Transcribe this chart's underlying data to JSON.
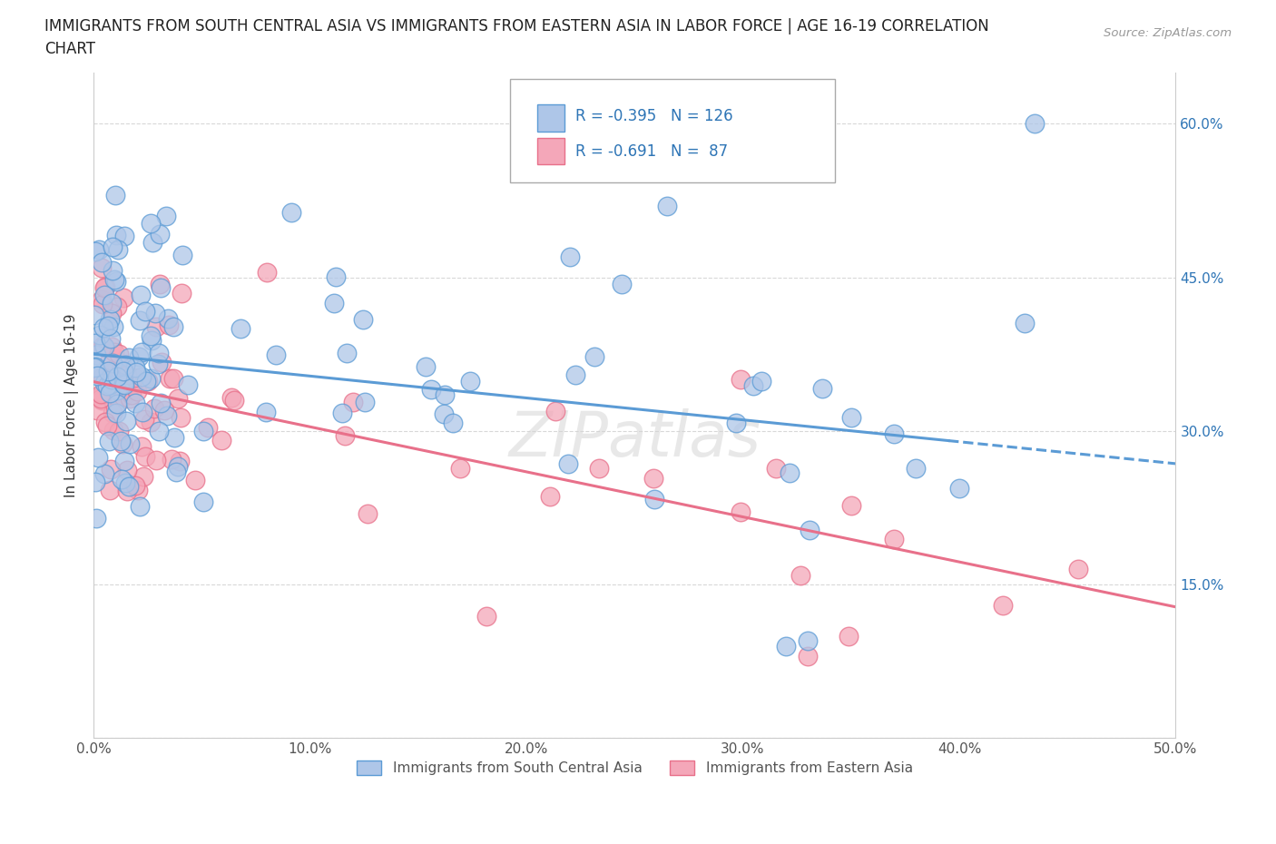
{
  "title_line1": "IMMIGRANTS FROM SOUTH CENTRAL ASIA VS IMMIGRANTS FROM EASTERN ASIA IN LABOR FORCE | AGE 16-19 CORRELATION",
  "title_line2": "CHART",
  "source": "Source: ZipAtlas.com",
  "ylabel": "In Labor Force | Age 16-19",
  "xlim": [
    0.0,
    0.5
  ],
  "ylim": [
    0.0,
    0.65
  ],
  "ytick_values": [
    0.0,
    0.15,
    0.3,
    0.45,
    0.6
  ],
  "xtick_values": [
    0.0,
    0.1,
    0.2,
    0.3,
    0.4,
    0.5
  ],
  "right_ytick_values": [
    0.15,
    0.3,
    0.45,
    0.6
  ],
  "series1_color": "#aec6e8",
  "series1_edge_color": "#5b9bd5",
  "series2_color": "#f4a7b9",
  "series2_edge_color": "#e8708a",
  "series1_label": "Immigrants from South Central Asia",
  "series2_label": "Immigrants from Eastern Asia",
  "series1_R": -0.395,
  "series1_N": 126,
  "series2_R": -0.691,
  "series2_N": 87,
  "legend_R_color": "#2e75b6",
  "trend1_color": "#5b9bd5",
  "trend2_color": "#e8708a",
  "watermark": "ZIPatlas",
  "grid_color": "#d8d8d8",
  "background_color": "#ffffff",
  "trend1_start_x": 0.0,
  "trend1_end_x": 0.5,
  "trend1_start_y": 0.375,
  "trend1_end_y": 0.268,
  "trend1_dash_start": 0.395,
  "trend2_start_x": 0.0,
  "trend2_end_x": 0.5,
  "trend2_start_y": 0.348,
  "trend2_end_y": 0.128
}
